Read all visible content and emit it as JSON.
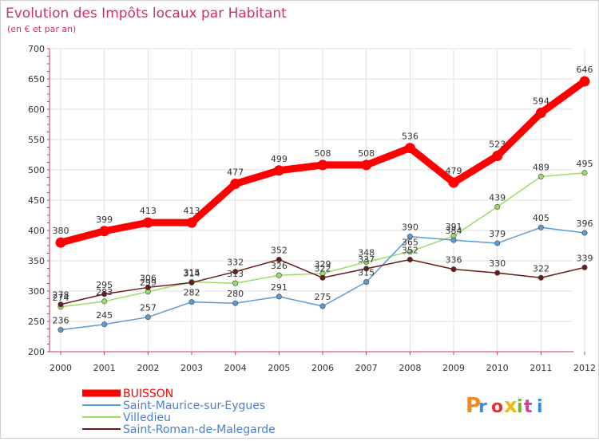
{
  "chart_data": {
    "type": "line",
    "title": "Evolution des Impôts locaux par Habitant",
    "subtitle": "(en € et par an)",
    "xlabel": "",
    "ylabel": "",
    "x": [
      "2000",
      "2001",
      "2002",
      "2003",
      "2004",
      "2005",
      "2006",
      "2007",
      "2008",
      "2009",
      "2010",
      "2011",
      "2012"
    ],
    "ylim": [
      200,
      700
    ],
    "yticks": [
      200,
      250,
      300,
      350,
      400,
      450,
      500,
      550,
      600,
      650,
      700
    ],
    "grid": true,
    "legend_position": "bottom-left",
    "series": [
      {
        "name": "BUISSON",
        "color": "#ff0000",
        "values": [
          380,
          399,
          413,
          413,
          477,
          499,
          508,
          508,
          536,
          479,
          523,
          594,
          646
        ]
      },
      {
        "name": "Saint-Maurice-sur-Eygues",
        "color": "#5b9bd5",
        "values": [
          236,
          245,
          257,
          282,
          280,
          291,
          275,
          315,
          390,
          384,
          379,
          405,
          396
        ]
      },
      {
        "name": "Villedieu",
        "color": "#99dd66",
        "values": [
          274,
          283,
          299,
          315,
          313,
          326,
          329,
          348,
          365,
          391,
          439,
          489,
          495
        ]
      },
      {
        "name": "Saint-Roman-de-Malegarde",
        "color": "#6b1a1a",
        "values": [
          278,
          295,
          306,
          314,
          332,
          352,
          322,
          337,
          352,
          336,
          330,
          322,
          339
        ]
      }
    ]
  },
  "brand": {
    "logo_text": "Proxiti"
  }
}
